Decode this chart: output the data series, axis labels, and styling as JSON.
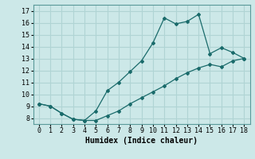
{
  "xlabel": "Humidex (Indice chaleur)",
  "bg_color": "#cce8e8",
  "line_color": "#1a6b6b",
  "grid_color": "#b0d4d4",
  "line1_x": [
    0,
    1,
    2,
    3,
    4,
    5,
    6,
    7,
    8,
    9,
    10,
    11,
    12,
    13,
    14,
    15,
    16,
    17,
    18
  ],
  "line1_y": [
    9.2,
    9.0,
    8.4,
    7.9,
    7.8,
    8.6,
    10.3,
    11.0,
    11.9,
    12.8,
    14.3,
    16.4,
    15.9,
    16.1,
    16.7,
    13.4,
    13.9,
    13.5,
    13.0
  ],
  "line2_x": [
    0,
    1,
    2,
    3,
    4,
    5,
    6,
    7,
    8,
    9,
    10,
    11,
    12,
    13,
    14,
    15,
    16,
    17,
    18
  ],
  "line2_y": [
    9.2,
    9.0,
    8.4,
    7.9,
    7.8,
    7.8,
    8.2,
    8.6,
    9.2,
    9.7,
    10.2,
    10.7,
    11.3,
    11.8,
    12.2,
    12.5,
    12.3,
    12.8,
    13.0
  ],
  "xlim": [
    -0.5,
    18.5
  ],
  "ylim": [
    7.5,
    17.5
  ],
  "yticks": [
    8,
    9,
    10,
    11,
    12,
    13,
    14,
    15,
    16,
    17
  ],
  "xticks": [
    0,
    1,
    2,
    3,
    4,
    5,
    6,
    7,
    8,
    9,
    10,
    11,
    12,
    13,
    14,
    15,
    16,
    17,
    18
  ],
  "tick_fontsize": 6.0,
  "xlabel_fontsize": 7.0
}
